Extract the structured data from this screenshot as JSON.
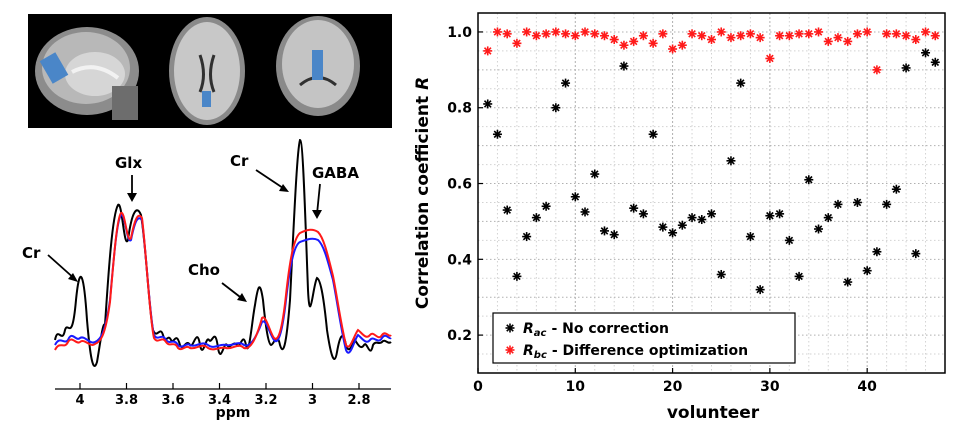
{
  "mri_panel": {
    "views": [
      "sagittal",
      "axial",
      "coronal"
    ]
  },
  "spectrum": {
    "xlabel": "ppm",
    "ticks": [
      "4",
      "3.8",
      "3.6",
      "3.4",
      "3.2",
      "3",
      "2.8"
    ],
    "annotations": {
      "cr_left": "Cr",
      "glx": "Glx",
      "cho": "Cho",
      "cr_right": "Cr",
      "gaba": "GABA"
    },
    "line_colors": {
      "black": "#000000",
      "blue": "#1a1aff",
      "red": "#ff1a1a"
    }
  },
  "chart_data": {
    "type": "scatter",
    "xlabel": "volunteer",
    "ylabel_prefix": "Correlation coefficient",
    "ylabel_var": "R",
    "xlim": [
      0,
      48
    ],
    "ylim": [
      0.1,
      1.05
    ],
    "xticks": [
      0,
      10,
      20,
      30,
      40
    ],
    "yticks": [
      0.2,
      0.4,
      0.6,
      0.8,
      1.0
    ],
    "ytick_labels": [
      "0.2",
      "0.4",
      "0.6",
      "0.8",
      "1.0"
    ],
    "grid": true,
    "legend_position": "bottom-left",
    "series": [
      {
        "name": "R_ac - No correction",
        "legend_symbol": "R",
        "legend_sub": "ac",
        "legend_text": "- No correction",
        "color": "#000000",
        "values": [
          [
            1,
            0.81
          ],
          [
            2,
            0.73
          ],
          [
            3,
            0.53
          ],
          [
            4,
            0.355
          ],
          [
            5,
            0.46
          ],
          [
            6,
            0.51
          ],
          [
            7,
            0.54
          ],
          [
            8,
            0.8
          ],
          [
            9,
            0.865
          ],
          [
            10,
            0.565
          ],
          [
            11,
            0.525
          ],
          [
            12,
            0.625
          ],
          [
            13,
            0.475
          ],
          [
            14,
            0.465
          ],
          [
            15,
            0.91
          ],
          [
            16,
            0.535
          ],
          [
            17,
            0.52
          ],
          [
            18,
            0.73
          ],
          [
            19,
            0.485
          ],
          [
            20,
            0.47
          ],
          [
            21,
            0.49
          ],
          [
            22,
            0.51
          ],
          [
            23,
            0.505
          ],
          [
            24,
            0.52
          ],
          [
            25,
            0.36
          ],
          [
            26,
            0.66
          ],
          [
            27,
            0.865
          ],
          [
            28,
            0.46
          ],
          [
            29,
            0.32
          ],
          [
            30,
            0.515
          ],
          [
            31,
            0.52
          ],
          [
            32,
            0.45
          ],
          [
            33,
            0.355
          ],
          [
            34,
            0.61
          ],
          [
            35,
            0.48
          ],
          [
            36,
            0.51
          ],
          [
            37,
            0.545
          ],
          [
            38,
            0.34
          ],
          [
            39,
            0.55
          ],
          [
            40,
            0.37
          ],
          [
            41,
            0.42
          ],
          [
            42,
            0.545
          ],
          [
            43,
            0.585
          ],
          [
            44,
            0.905
          ],
          [
            45,
            0.415
          ],
          [
            46,
            0.945
          ],
          [
            47,
            0.92
          ]
        ]
      },
      {
        "name": "R_bc - Difference optimization",
        "legend_symbol": "R",
        "legend_sub": "bc",
        "legend_text": "- Difference optimization",
        "color": "#ff1a1a",
        "values": [
          [
            1,
            0.95
          ],
          [
            2,
            1.0
          ],
          [
            3,
            0.995
          ],
          [
            4,
            0.97
          ],
          [
            5,
            1.0
          ],
          [
            6,
            0.99
          ],
          [
            7,
            0.995
          ],
          [
            8,
            1.0
          ],
          [
            9,
            0.995
          ],
          [
            10,
            0.99
          ],
          [
            11,
            1.0
          ],
          [
            12,
            0.995
          ],
          [
            13,
            0.99
          ],
          [
            14,
            0.98
          ],
          [
            15,
            0.965
          ],
          [
            16,
            0.975
          ],
          [
            17,
            0.99
          ],
          [
            18,
            0.97
          ],
          [
            19,
            0.995
          ],
          [
            20,
            0.955
          ],
          [
            21,
            0.965
          ],
          [
            22,
            0.995
          ],
          [
            23,
            0.99
          ],
          [
            24,
            0.98
          ],
          [
            25,
            1.0
          ],
          [
            26,
            0.985
          ],
          [
            27,
            0.99
          ],
          [
            28,
            0.995
          ],
          [
            29,
            0.985
          ],
          [
            30,
            0.93
          ],
          [
            31,
            0.99
          ],
          [
            32,
            0.99
          ],
          [
            33,
            0.995
          ],
          [
            34,
            0.995
          ],
          [
            35,
            1.0
          ],
          [
            36,
            0.975
          ],
          [
            37,
            0.985
          ],
          [
            38,
            0.975
          ],
          [
            39,
            0.995
          ],
          [
            40,
            1.0
          ],
          [
            41,
            0.9
          ],
          [
            42,
            0.995
          ],
          [
            43,
            0.995
          ],
          [
            44,
            0.99
          ],
          [
            45,
            0.98
          ],
          [
            46,
            1.0
          ],
          [
            47,
            0.99
          ]
        ]
      }
    ]
  }
}
